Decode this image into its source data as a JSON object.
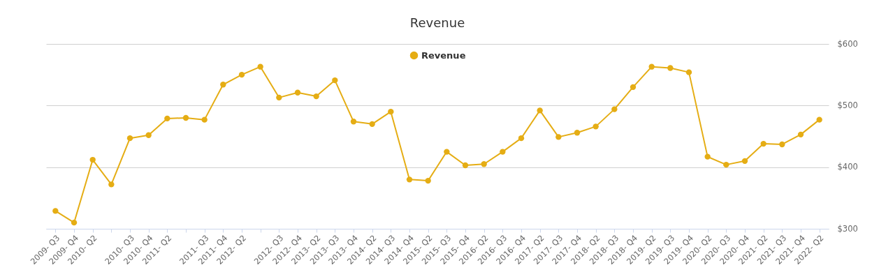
{
  "chart_data": {
    "type": "line",
    "title": "Revenue",
    "categories": [
      "2009- Q3",
      "2009- Q4",
      "2010- Q2",
      null,
      "2010- Q3",
      "2010- Q4",
      "2011- Q2",
      null,
      "2011- Q3",
      "2011- Q4",
      "2012- Q2",
      null,
      "2012- Q3",
      "2012- Q4",
      "2013- Q2",
      "2013- Q3",
      "2013- Q4",
      "2014- Q2",
      "2014- Q3",
      "2014- Q4",
      "2015- Q2",
      "2015- Q3",
      "2015- Q4",
      "2016- Q2",
      "2016- Q3",
      "2016- Q4",
      "2017- Q2",
      "2017- Q3",
      "2017- Q4",
      "2018- Q2",
      "2018- Q3",
      "2018- Q4",
      "2019- Q2",
      "2019- Q3",
      "2019- Q4",
      "2020- Q2",
      "2020- Q3",
      "2020- Q4",
      "2021- Q2",
      "2021- Q3",
      "2021- Q4",
      "2022- Q2"
    ],
    "series": [
      {
        "name": "Revenue",
        "color": "#e5ad14",
        "values": [
          329,
          310,
          412,
          372,
          447,
          452,
          479,
          480,
          477,
          534,
          550,
          563,
          513,
          521,
          515,
          541,
          474,
          470,
          490,
          380,
          378,
          425,
          403,
          405,
          425,
          447,
          492,
          449,
          456,
          466,
          494,
          530,
          563,
          561,
          554,
          417,
          404,
          410,
          438,
          437,
          453,
          477
        ]
      }
    ],
    "ylim": [
      300,
      600
    ],
    "yticks": [
      {
        "value": 300,
        "label": "$300"
      },
      {
        "value": 400,
        "label": "$400"
      },
      {
        "value": 500,
        "label": "$500"
      },
      {
        "value": 600,
        "label": "$600"
      }
    ],
    "grid": "y",
    "legend": "top",
    "marker": "circle",
    "line_style": "solid"
  }
}
